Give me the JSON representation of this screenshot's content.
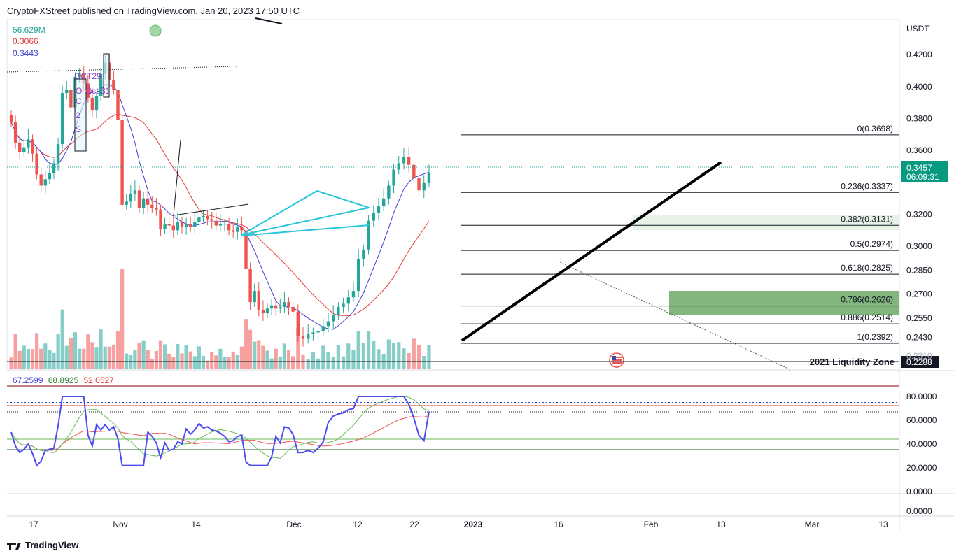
{
  "header": {
    "publisher_text": "CryptoFXStreet published on TradingView.com, Jan 20, 2023 17:50 UTC"
  },
  "legend": {
    "volume": "56.629M",
    "ma_slow": "0.3066",
    "ma_fast": "0.3443"
  },
  "rsi_legend": {
    "rsi": "67.2599",
    "rsi_ma": "68.8925",
    "rsi_slow": "52.0527"
  },
  "price_scale": {
    "currency": "USDT",
    "ticks": [
      "0.4200",
      "0.4000",
      "0.3800",
      "0.3600",
      "0.3200",
      "0.3000",
      "0.2850",
      "0.2700",
      "0.2550",
      "0.2430"
    ],
    "last_price": "0.3457",
    "countdown": "06:09:31",
    "liquidity_price": "0.2288"
  },
  "rsi_scale": {
    "ticks": [
      "80.0000",
      "60.0000",
      "40.0000",
      "20.0000",
      "0.0000",
      "0.0000"
    ]
  },
  "time_axis": {
    "ticks": [
      "17",
      "Nov",
      "14",
      "Dec",
      "12",
      "22",
      "2023",
      "16",
      "Feb",
      "13",
      "Mar",
      "13"
    ]
  },
  "annotations": {
    "fib_levels": [
      "0(0.3698)",
      "0.236(0.3337)",
      "0.382(0.3131)",
      "0.5(0.2974)",
      "0.618(0.2825)",
      "0.786(0.2626)",
      "0.886(0.2514)",
      "1(0.2392)"
    ],
    "liquidity_zone": "2021 Liquidity Zone",
    "oct_labels": [
      "OCT29",
      "O",
      "Oct 31",
      "C",
      "2",
      "S"
    ]
  },
  "footer": {
    "brand": "TradingView"
  },
  "colors": {
    "up": "#26a69a",
    "down": "#ef5350",
    "ma_fast": "#3f3fd6",
    "ma_slow": "#e53935",
    "accent": "#089981",
    "rsi": "#4c4cf0",
    "rsi_ma": "#66bb55",
    "rsi_slow": "#ef5350",
    "zone_green": "#81b67f",
    "zone_light": "#e8f3e8"
  },
  "chart_data": {
    "type": "candlestick",
    "symbol_quote": "USDT",
    "ylim": [
      0.223,
      0.442
    ],
    "closes": [
      0.378,
      0.365,
      0.359,
      0.362,
      0.367,
      0.358,
      0.345,
      0.338,
      0.342,
      0.346,
      0.352,
      0.364,
      0.396,
      0.398,
      0.387,
      0.406,
      0.408,
      0.402,
      0.393,
      0.385,
      0.394,
      0.408,
      0.415,
      0.404,
      0.398,
      0.379,
      0.326,
      0.328,
      0.333,
      0.335,
      0.324,
      0.33,
      0.326,
      0.324,
      0.323,
      0.311,
      0.314,
      0.313,
      0.31,
      0.315,
      0.312,
      0.314,
      0.312,
      0.315,
      0.318,
      0.319,
      0.317,
      0.316,
      0.313,
      0.314,
      0.314,
      0.31,
      0.309,
      0.312,
      0.31,
      0.286,
      0.265,
      0.272,
      0.26,
      0.258,
      0.261,
      0.263,
      0.261,
      0.262,
      0.265,
      0.262,
      0.259,
      0.244,
      0.242,
      0.245,
      0.246,
      0.247,
      0.25,
      0.253,
      0.257,
      0.262,
      0.264,
      0.268,
      0.272,
      0.292,
      0.298,
      0.316,
      0.321,
      0.325,
      0.33,
      0.338,
      0.348,
      0.352,
      0.356,
      0.351,
      0.343,
      0.335,
      0.34,
      0.3457
    ],
    "rsi_levels": [
      80,
      60,
      40,
      20
    ],
    "rsi_last": 67.26,
    "time_labels": [
      "17",
      "Nov",
      "14",
      "Dec",
      "12",
      "22",
      "2023",
      "16",
      "Feb",
      "13",
      "Mar",
      "13"
    ]
  }
}
